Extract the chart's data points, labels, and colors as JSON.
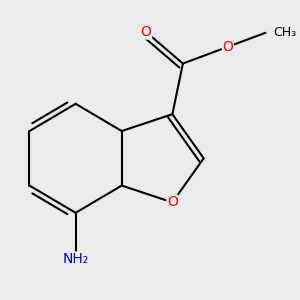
{
  "background_color": "#ebebeb",
  "bond_color": "#000000",
  "bond_width": 1.5,
  "atom_colors": {
    "O": "#ff0000",
    "N": "#0000cd",
    "C": "#000000"
  },
  "font_size_atoms": 10,
  "font_size_methyl": 9
}
